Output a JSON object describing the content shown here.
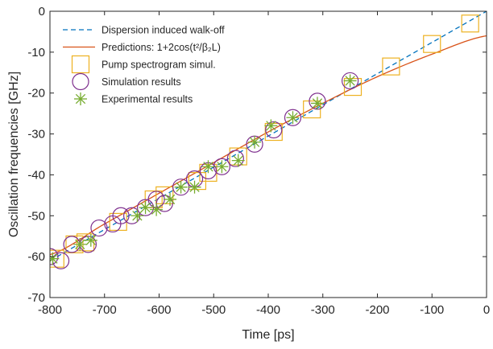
{
  "chart_data": {
    "type": "scatter",
    "title": "",
    "xlabel": "Time [ps]",
    "ylabel": "Oscillation frequencies [GHz]",
    "xlim": [
      -800,
      0
    ],
    "ylim": [
      -70,
      0
    ],
    "xticks": [
      -800,
      -700,
      -600,
      -500,
      -400,
      -300,
      -200,
      -100,
      0
    ],
    "yticks": [
      -70,
      -60,
      -50,
      -40,
      -30,
      -20,
      -10,
      0
    ],
    "grid": false,
    "legend_position": "top-left",
    "series": [
      {
        "name": "Dispersion induced walk-off",
        "kind": "dashed-line",
        "color": "#0072BD",
        "x": [
          -800,
          0
        ],
        "y": [
          -61,
          0
        ]
      },
      {
        "name": "Predictions: 1+2cos(t²/β₂L)",
        "kind": "line",
        "color": "#D95319",
        "x": [
          -800,
          -700,
          -600,
          -500,
          -400,
          -300,
          -200,
          -100,
          0
        ],
        "y": [
          -59.5,
          -52,
          -44.5,
          -37,
          -29.5,
          -22.5,
          -16,
          -10.5,
          -6
        ]
      },
      {
        "name": "Pump spectrogram simul.",
        "kind": "square-marker",
        "color": "#EDB120",
        "x": [
          -790,
          -755,
          -735,
          -675,
          -610,
          -590,
          -530,
          -510,
          -455,
          -390,
          -320,
          -245,
          -175,
          -100,
          -30
        ],
        "y": [
          -60.5,
          -57,
          -56.5,
          -51.5,
          -46,
          -45,
          -41.5,
          -39.5,
          -35.5,
          -29.5,
          -24,
          -18.5,
          -13.5,
          -8,
          -3
        ]
      },
      {
        "name": "Simulation results",
        "kind": "circle-marker",
        "color": "#7E2F8E",
        "x": [
          -800,
          -780,
          -760,
          -730,
          -710,
          -685,
          -670,
          -650,
          -625,
          -605,
          -590,
          -560,
          -535,
          -510,
          -485,
          -460,
          -425,
          -390,
          -355,
          -310,
          -250
        ],
        "y": [
          -60,
          -61,
          -57,
          -57,
          -53,
          -52,
          -50,
          -50,
          -48,
          -46,
          -47,
          -43,
          -41,
          -39,
          -38,
          -36,
          -32.5,
          -29,
          -26,
          -22,
          -17
        ]
      },
      {
        "name": "Experimental results",
        "kind": "asterisk-marker",
        "color": "#77AC30",
        "x": [
          -795,
          -745,
          -725,
          -640,
          -625,
          -605,
          -580,
          -560,
          -535,
          -510,
          -485,
          -455,
          -425,
          -395,
          -355,
          -310,
          -250
        ],
        "y": [
          -60.5,
          -57,
          -56,
          -50,
          -48,
          -48.5,
          -46,
          -43,
          -43,
          -38,
          -38,
          -36.5,
          -32,
          -28,
          -26,
          -22.5,
          -17
        ]
      }
    ]
  },
  "legend": {
    "items": [
      {
        "label": "Dispersion induced walk-off",
        "kind": "dashed-line",
        "color": "#0072BD"
      },
      {
        "label": "Predictions: 1+2cos(t²/β₂L)",
        "kind": "line",
        "color": "#D95319"
      },
      {
        "label": "Pump spectrogram simul.",
        "kind": "square-marker",
        "color": "#EDB120"
      },
      {
        "label": "Simulation results",
        "kind": "circle-marker",
        "color": "#7E2F8E"
      },
      {
        "label": "Experimental results",
        "kind": "asterisk-marker",
        "color": "#77AC30"
      }
    ]
  }
}
